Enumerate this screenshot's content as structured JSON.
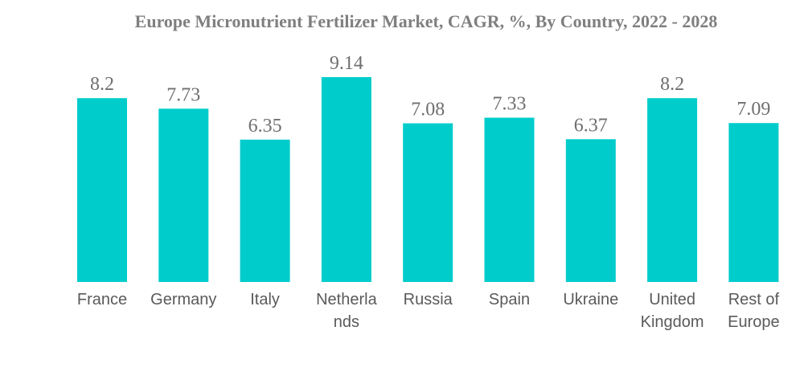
{
  "chart_data": {
    "type": "bar",
    "title": "Europe Micronutrient Fertilizer Market, CAGR, %, By Country, 2022 - 2028",
    "xlabel": "",
    "ylabel": "",
    "categories": [
      [
        "France"
      ],
      [
        "Germany"
      ],
      [
        "Italy"
      ],
      [
        "Netherla",
        "nds"
      ],
      [
        "Russia"
      ],
      [
        "Spain"
      ],
      [
        "Ukraine"
      ],
      [
        "United",
        "Kingdom"
      ],
      [
        "Rest of",
        "Europe"
      ]
    ],
    "values": [
      8.2,
      7.73,
      6.35,
      9.14,
      7.08,
      7.33,
      6.37,
      8.2,
      7.09
    ],
    "value_labels": [
      "8.2",
      "7.73",
      "6.35",
      "9.14",
      "7.08",
      "7.33",
      "6.37",
      "8.2",
      "7.09"
    ],
    "ylim": [
      0,
      9.14
    ],
    "grid": false,
    "legend": "none",
    "bar_color": "#00cccc"
  }
}
